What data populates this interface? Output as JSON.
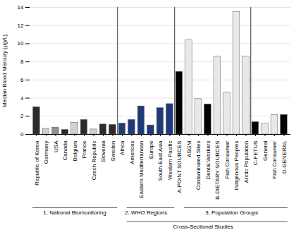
{
  "chart_data": {
    "type": "bar",
    "categories": [
      "Republic of Korea",
      "Germany",
      "USA",
      "Canada",
      "Belgium",
      "France",
      "Czech Republic",
      "Slovenia",
      "Sweden",
      "Africa",
      "Americas",
      "Eastern Mediterranean",
      "Europe",
      "South-East Asia",
      "Western Pacific",
      "A-POINT SOURCES",
      "ASGM",
      "Contaminated Sites",
      "Dental Workers",
      "B-DIETARY SOURCES",
      "Fish Consumer",
      "Indigenous Peoples",
      "Arctic Population",
      "C-FETUS",
      "General",
      "Fish Consumer",
      "D-GENERAL"
    ],
    "values": [
      3.0,
      0.62,
      0.75,
      0.5,
      1.3,
      1.6,
      0.55,
      1.1,
      1.05,
      1.2,
      1.6,
      3.1,
      1.0,
      2.9,
      3.35,
      6.9,
      10.4,
      3.9,
      3.3,
      8.6,
      4.6,
      13.5,
      8.6,
      1.35,
      1.2,
      2.15,
      2.15
    ],
    "colors": [
      "#2b2b2b",
      "#d0d0d0",
      "#909090",
      "#2b2b2b",
      "#d0d0d0",
      "#2b2b2b",
      "#d0d0d0",
      "#2b2b2b",
      "#2b2b2b",
      "#1e3a78",
      "#1e3a78",
      "#1e3a78",
      "#1e3a78",
      "#1e3a78",
      "#1e3a78",
      "#000000",
      "#e8e8e8",
      "#e8e8e8",
      "#000000",
      "#e8e8e8",
      "#e8e8e8",
      "#e8e8e8",
      "#e8e8e8",
      "#000000",
      "#e8e8e8",
      "#e8e8e8",
      "#000000"
    ],
    "ylabel": "Median Blood Mercury (μg/L)",
    "ylim": [
      0,
      14
    ],
    "yticks": [
      0,
      2,
      4,
      6,
      8,
      10,
      12,
      14
    ],
    "grid": true,
    "annotations": [
      "1. National Biomonitoring",
      "2. WHO Regions",
      "3. Population Groups",
      "Cross-Sectional Studies"
    ]
  }
}
